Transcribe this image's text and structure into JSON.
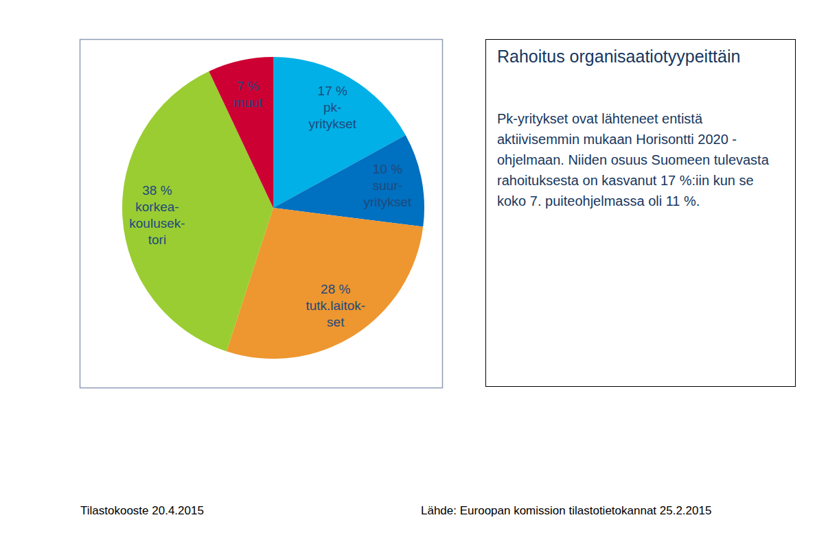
{
  "chart_data": {
    "type": "pie",
    "title": "Rahoitus organisaatiotyypeittäin",
    "categories": [
      "pk-yritykset",
      "suur-yritykset",
      "tutk.laitok-set",
      "korkea-koulusek-tori",
      "muut"
    ],
    "values": [
      17,
      10,
      28,
      38,
      7
    ],
    "value_labels": [
      "17 %",
      "10 %",
      "28 %",
      "38 %",
      "7 %"
    ],
    "colors": [
      "#00b0e6",
      "#0070c0",
      "#ee962f",
      "#9acd32",
      "#cc0033"
    ],
    "data_labels": true,
    "annotations": [
      "Pk-yritykset ovat lähteneet entistä aktiivisemmin mukaan Horisontti 2020 -ohjelmaan. Niiden osuus Suomeen tulevasta rahoituksesta on kasvanut 17 %:iin kun se koko 7. puiteohjelmassa oli 11 %.",
      "Tilastokooste 20.4.2015",
      "Lähde: Euroopan komission tilastotietokannat 25.2.2015"
    ]
  }
}
